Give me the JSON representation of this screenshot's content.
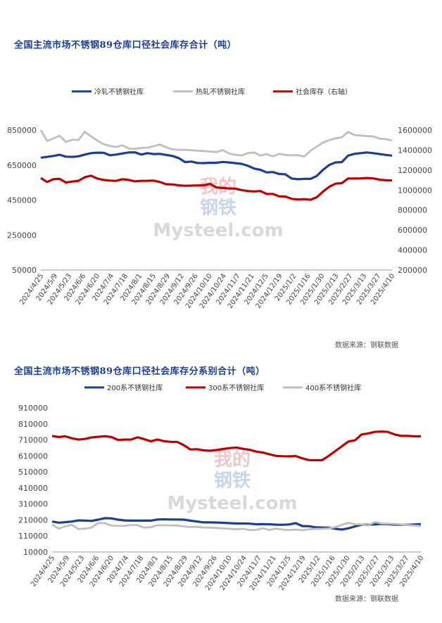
{
  "chart_data": [
    {
      "type": "line",
      "title": "全国主流市场不锈钢89仓库口径社会库存合计（吨）",
      "source": "数据来源：钢联数据",
      "watermark": [
        "我的",
        "钢铁",
        "Mysteel.com"
      ],
      "ylim": [
        50000,
        850000
      ],
      "yticks": [
        "850000",
        "650000",
        "450000",
        "250000",
        "50000"
      ],
      "y2lim": [
        200000,
        1600000
      ],
      "y2ticks": [
        "1600000",
        "1400000",
        "1200000",
        "1000000",
        "800000",
        "600000",
        "400000",
        "200000"
      ],
      "xticks": [
        "2024/4/25",
        "2024/5/9",
        "2024/5/23",
        "2024/6/6",
        "2024/6/20",
        "2024/7/4",
        "2024/7/18",
        "2024/8/1",
        "2024/8/15",
        "2024/8/29",
        "2024/9/12",
        "2024/9/26",
        "2024/10/10",
        "2024/10/24",
        "2024/11/7",
        "2024/11/21",
        "2024/12/5",
        "2024/12/19",
        "2025/1/2",
        "2025/1/16",
        "2025/1/30",
        "2025/2/13",
        "2025/2/27",
        "2025/3/13",
        "2025/3/27",
        "2025/4/10"
      ],
      "legend_position": "top",
      "series": [
        {
          "name": "冷轧不锈钢社库",
          "color": "#1c3f94",
          "axis": "left",
          "values": [
            692000,
            697000,
            702000,
            709000,
            698000,
            697000,
            700000,
            710000,
            718000,
            721000,
            720000,
            706000,
            710000,
            716000,
            722000,
            723000,
            710000,
            718000,
            713000,
            714000,
            708000,
            702000,
            690000,
            667000,
            670000,
            662000,
            661000,
            663000,
            663000,
            668000,
            665000,
            661000,
            657000,
            646000,
            630000,
            623000,
            608000,
            610000,
            599000,
            597000,
            573000,
            569000,
            571000,
            571000,
            588000,
            623000,
            651000,
            665000,
            667000,
            704000,
            714000,
            718000,
            722000,
            718000,
            713000,
            708000,
            704000
          ]
        },
        {
          "name": "热轧不锈钢社库",
          "color": "#bfbfbf",
          "axis": "left",
          "values": [
            849000,
            788000,
            802000,
            818000,
            782000,
            795000,
            793000,
            840000,
            815000,
            790000,
            769000,
            760000,
            753000,
            763000,
            745000,
            742000,
            748000,
            749000,
            758000,
            767000,
            752000,
            740000,
            737000,
            737000,
            735000,
            732000,
            730000,
            727000,
            724000,
            736000,
            716000,
            709000,
            705000,
            718000,
            722000,
            704000,
            712000,
            700000,
            714000,
            708000,
            706000,
            707000,
            699000,
            732000,
            756000,
            779000,
            793000,
            803000,
            809000,
            840000,
            822000,
            819000,
            816000,
            814000,
            801000,
            798000,
            790000
          ]
        },
        {
          "name": "社会库存（右轴）",
          "color": "#c00000",
          "axis": "right",
          "values": [
            1120000,
            1081000,
            1108000,
            1112000,
            1076000,
            1085000,
            1093000,
            1128000,
            1144000,
            1115000,
            1101000,
            1095000,
            1092000,
            1108000,
            1101000,
            1088000,
            1092000,
            1093000,
            1095000,
            1080000,
            1058000,
            1056000,
            1047000,
            1043000,
            1044000,
            1046000,
            1048000,
            1061000,
            1026000,
            1021000,
            1016000,
            1015000,
            1000000,
            990000,
            986000,
            990000,
            961000,
            961000,
            937000,
            935000,
            912000,
            906000,
            909000,
            903000,
            928000,
            985000,
            1033000,
            1064000,
            1069000,
            1116000,
            1115000,
            1117000,
            1121000,
            1117000,
            1104000,
            1098000,
            1096000
          ]
        }
      ]
    },
    {
      "type": "line",
      "title": "全国主流市场不锈钢89仓库口径社会库存分系别合计（吨）",
      "source": "数据来源：钢联数据",
      "watermark": [
        "我的",
        "钢铁",
        "Mysteel.com"
      ],
      "ylim": [
        10000,
        910000
      ],
      "yticks": [
        "910000",
        "810000",
        "710000",
        "610000",
        "510000",
        "410000",
        "310000",
        "210000",
        "110000",
        "10000"
      ],
      "xticks": [
        "2024/4/25",
        "2024/5/9",
        "2024/5/23",
        "2024/6/6",
        "2024/6/20",
        "2024/7/4",
        "2024/7/18",
        "2024/8/1",
        "2024/8/15",
        "2024/8/29",
        "2024/9/12",
        "2024/9/26",
        "2024/10/10",
        "2024/10/24",
        "2024/11/7",
        "2024/11/21",
        "2024/12/5",
        "2024/12/19",
        "2025/1/2",
        "2025/1/16",
        "2025/1/30",
        "2025/2/13",
        "2025/2/27",
        "2025/3/13",
        "2025/3/27",
        "2025/4/10"
      ],
      "legend_position": "top",
      "series": [
        {
          "name": "200系不锈钢社库",
          "color": "#1c3f94",
          "values": [
            200000,
            193000,
            196000,
            200000,
            207000,
            206000,
            204000,
            212000,
            221000,
            220000,
            212000,
            207000,
            206000,
            206000,
            206000,
            206000,
            213000,
            214000,
            213000,
            213000,
            212000,
            206000,
            200000,
            195000,
            195000,
            194000,
            192000,
            190000,
            188000,
            188000,
            187000,
            183000,
            184000,
            183000,
            181000,
            180000,
            182000,
            190000,
            172000,
            171000,
            164000,
            163000,
            162000,
            155000,
            150000,
            158000,
            170000,
            181000,
            180000,
            182000,
            185000,
            184000,
            181000,
            181000,
            180000,
            182000,
            184000
          ]
        },
        {
          "name": "300系不锈钢社库",
          "color": "#c00000",
          "values": [
            735000,
            728000,
            732000,
            720000,
            712000,
            716000,
            725000,
            729000,
            733000,
            728000,
            710000,
            712000,
            712000,
            726000,
            714000,
            701000,
            712000,
            702000,
            698000,
            697000,
            677000,
            650000,
            652000,
            645000,
            642000,
            647000,
            653000,
            659000,
            662000,
            654000,
            648000,
            637000,
            631000,
            620000,
            610000,
            608000,
            607000,
            609000,
            595000,
            584000,
            583000,
            583000,
            610000,
            640000,
            670000,
            700000,
            707000,
            744000,
            750000,
            760000,
            762000,
            760000,
            744000,
            735000,
            735000,
            732000,
            732000
          ]
        },
        {
          "name": "400系不锈钢社库",
          "color": "#bfbfbf",
          "values": [
            180000,
            156000,
            170000,
            180000,
            153000,
            156000,
            162000,
            191000,
            190000,
            175000,
            173000,
            173000,
            179000,
            177000,
            162000,
            165000,
            177000,
            177000,
            176000,
            175000,
            170000,
            166000,
            167000,
            163000,
            162000,
            160000,
            157000,
            155000,
            152000,
            155000,
            147000,
            148000,
            158000,
            148000,
            156000,
            150000,
            147000,
            150000,
            146000,
            152000,
            154000,
            155000,
            157000,
            165000,
            180000,
            192000,
            183000,
            183000,
            175000,
            198000,
            188000,
            187000,
            185000,
            183000,
            178000,
            175000,
            172000
          ]
        }
      ]
    }
  ]
}
